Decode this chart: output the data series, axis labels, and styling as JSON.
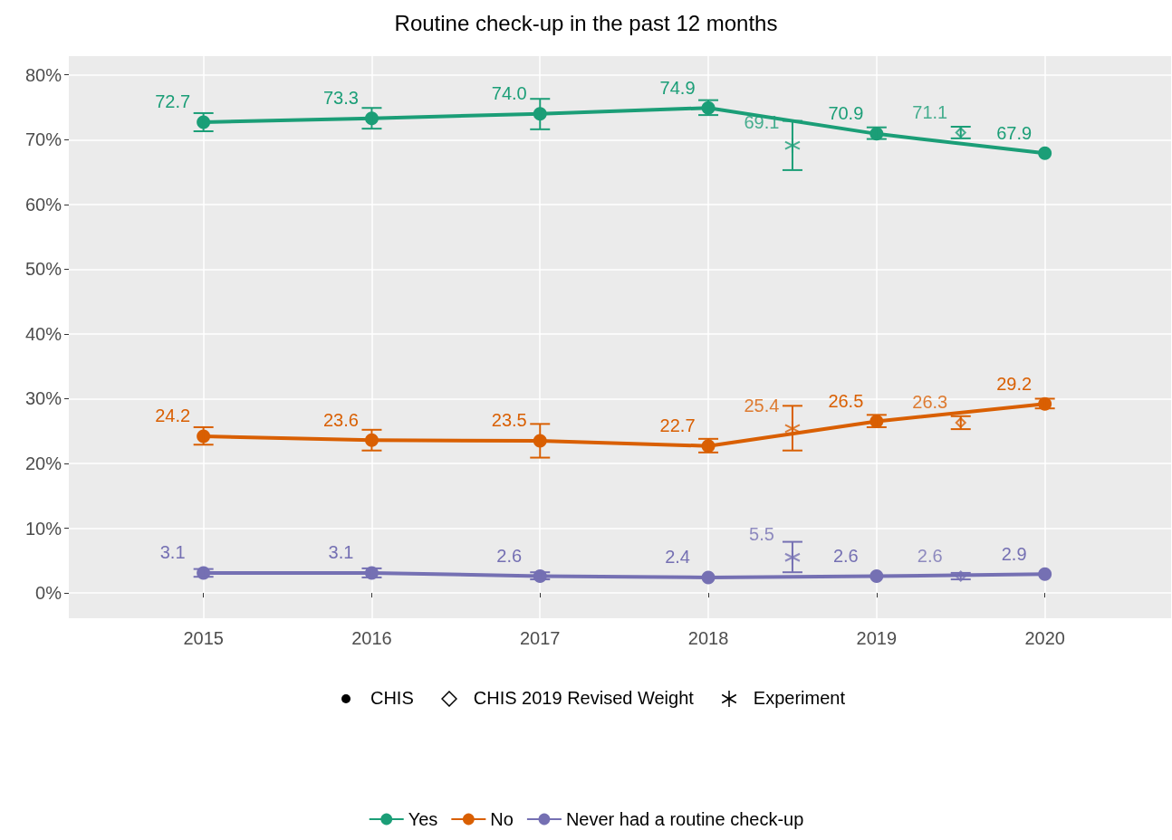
{
  "chart_data": {
    "type": "line",
    "title": "Routine check-up in the past 12 months",
    "xlim": [
      2014.2,
      2020.75
    ],
    "xticks": [
      2015,
      2016,
      2017,
      2018,
      2019,
      2020
    ],
    "ylim": [
      -3.9,
      82.9
    ],
    "yticks": [
      {
        "value": 0,
        "label": "0%"
      },
      {
        "value": 10,
        "label": "10%"
      },
      {
        "value": 20,
        "label": "20%"
      },
      {
        "value": 30,
        "label": "30%"
      },
      {
        "value": 40,
        "label": "40%"
      },
      {
        "value": 50,
        "label": "50%"
      },
      {
        "value": 60,
        "label": "60%"
      },
      {
        "value": 70,
        "label": "70%"
      },
      {
        "value": 80,
        "label": "80%"
      }
    ],
    "grid": true,
    "legend": "bottom",
    "marker": "circle",
    "annotations": [
      "CHIS",
      "CHIS 2019 Revised Weight",
      "Experiment"
    ],
    "series": [
      {
        "name": "Yes",
        "color": "#1b9e77",
        "x": [
          2015,
          2016,
          2017,
          2018,
          2019,
          2020
        ],
        "values": [
          72.7,
          73.3,
          74.0,
          74.9,
          70.9,
          67.9
        ],
        "value_labels": [
          "72.7",
          "73.3",
          "74.0",
          "74.9",
          "70.9",
          "67.9"
        ],
        "errors": [
          [
            71.3,
            74.1
          ],
          [
            71.7,
            74.9
          ],
          [
            71.6,
            76.3
          ],
          [
            73.8,
            76.1
          ],
          [
            70.1,
            71.9
          ],
          null
        ]
      },
      {
        "name": "No",
        "color": "#d95f02",
        "x": [
          2015,
          2016,
          2017,
          2018,
          2019,
          2020
        ],
        "values": [
          24.2,
          23.6,
          23.5,
          22.7,
          26.5,
          29.2
        ],
        "value_labels": [
          "24.2",
          "23.6",
          "23.5",
          "22.7",
          "26.5",
          "29.2"
        ],
        "errors": [
          [
            22.9,
            25.6
          ],
          [
            22.0,
            25.2
          ],
          [
            20.9,
            26.1
          ],
          [
            21.7,
            23.8
          ],
          [
            25.6,
            27.5
          ],
          [
            28.5,
            30.0
          ]
        ]
      },
      {
        "name": "Never had a routine check-up",
        "color": "#7570b3",
        "x": [
          2015,
          2016,
          2017,
          2018,
          2019,
          2020
        ],
        "values": [
          3.1,
          3.1,
          2.6,
          2.4,
          2.6,
          2.9
        ],
        "value_labels": [
          "3.1",
          "3.1",
          "2.6",
          "2.4",
          "2.6",
          "2.9"
        ],
        "errors": [
          [
            2.5,
            3.7
          ],
          [
            2.4,
            3.8
          ],
          [
            2.1,
            3.2
          ],
          null,
          null,
          null
        ]
      },
      {
        "type": "scatter",
        "marker": "diamond",
        "x": [
          2019.5,
          2019.5,
          2019.5
        ],
        "values": [
          71.1,
          26.3,
          2.6
        ],
        "colors": [
          "#1b9e77",
          "#d95f02",
          "#7570b3"
        ],
        "value_labels": [
          "71.1",
          "26.3",
          "2.6"
        ],
        "errors": [
          [
            70.2,
            72.0
          ],
          [
            25.3,
            27.3
          ],
          [
            2.1,
            3.1
          ]
        ]
      },
      {
        "type": "scatter",
        "marker": "cross",
        "x": [
          2018.5,
          2018.5,
          2018.5
        ],
        "values": [
          69.1,
          25.4,
          5.5
        ],
        "colors": [
          "#1b9e77",
          "#d95f02",
          "#7570b3"
        ],
        "value_labels": [
          "69.1",
          "25.4",
          "5.5"
        ],
        "errors": [
          [
            65.3,
            72.9
          ],
          [
            22.0,
            28.9
          ],
          [
            3.2,
            7.9
          ]
        ]
      }
    ]
  }
}
